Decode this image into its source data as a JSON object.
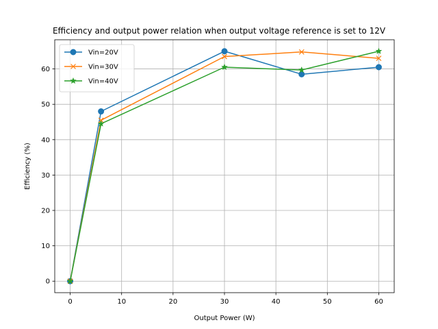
{
  "chart_data": {
    "type": "line",
    "title": "Efficiency and output power relation when output voltage reference is set to 12V",
    "xlabel": "Output Power (W)",
    "ylabel": "Efficiency (%)",
    "xlim": [
      -3,
      63
    ],
    "ylim": [
      -3.25,
      68.25
    ],
    "xticks": [
      0,
      10,
      20,
      30,
      40,
      50,
      60
    ],
    "yticks": [
      0,
      10,
      20,
      30,
      40,
      50,
      60
    ],
    "grid": true,
    "legend_position": "upper-left",
    "series": [
      {
        "name": "Vin=20V",
        "color": "#1f77b4",
        "marker": "circle",
        "x": [
          0,
          6,
          30,
          45,
          60
        ],
        "y": [
          0,
          48,
          65,
          58.5,
          60.5
        ]
      },
      {
        "name": "Vin=30V",
        "color": "#ff7f0e",
        "marker": "x",
        "x": [
          0,
          6,
          30,
          45,
          60
        ],
        "y": [
          0,
          45.5,
          63.5,
          64.8,
          63
        ]
      },
      {
        "name": "Vin=40V",
        "color": "#2ca02c",
        "marker": "star",
        "x": [
          0,
          6,
          30,
          45,
          60
        ],
        "y": [
          0,
          44.5,
          60.5,
          59.7,
          65
        ]
      }
    ]
  }
}
